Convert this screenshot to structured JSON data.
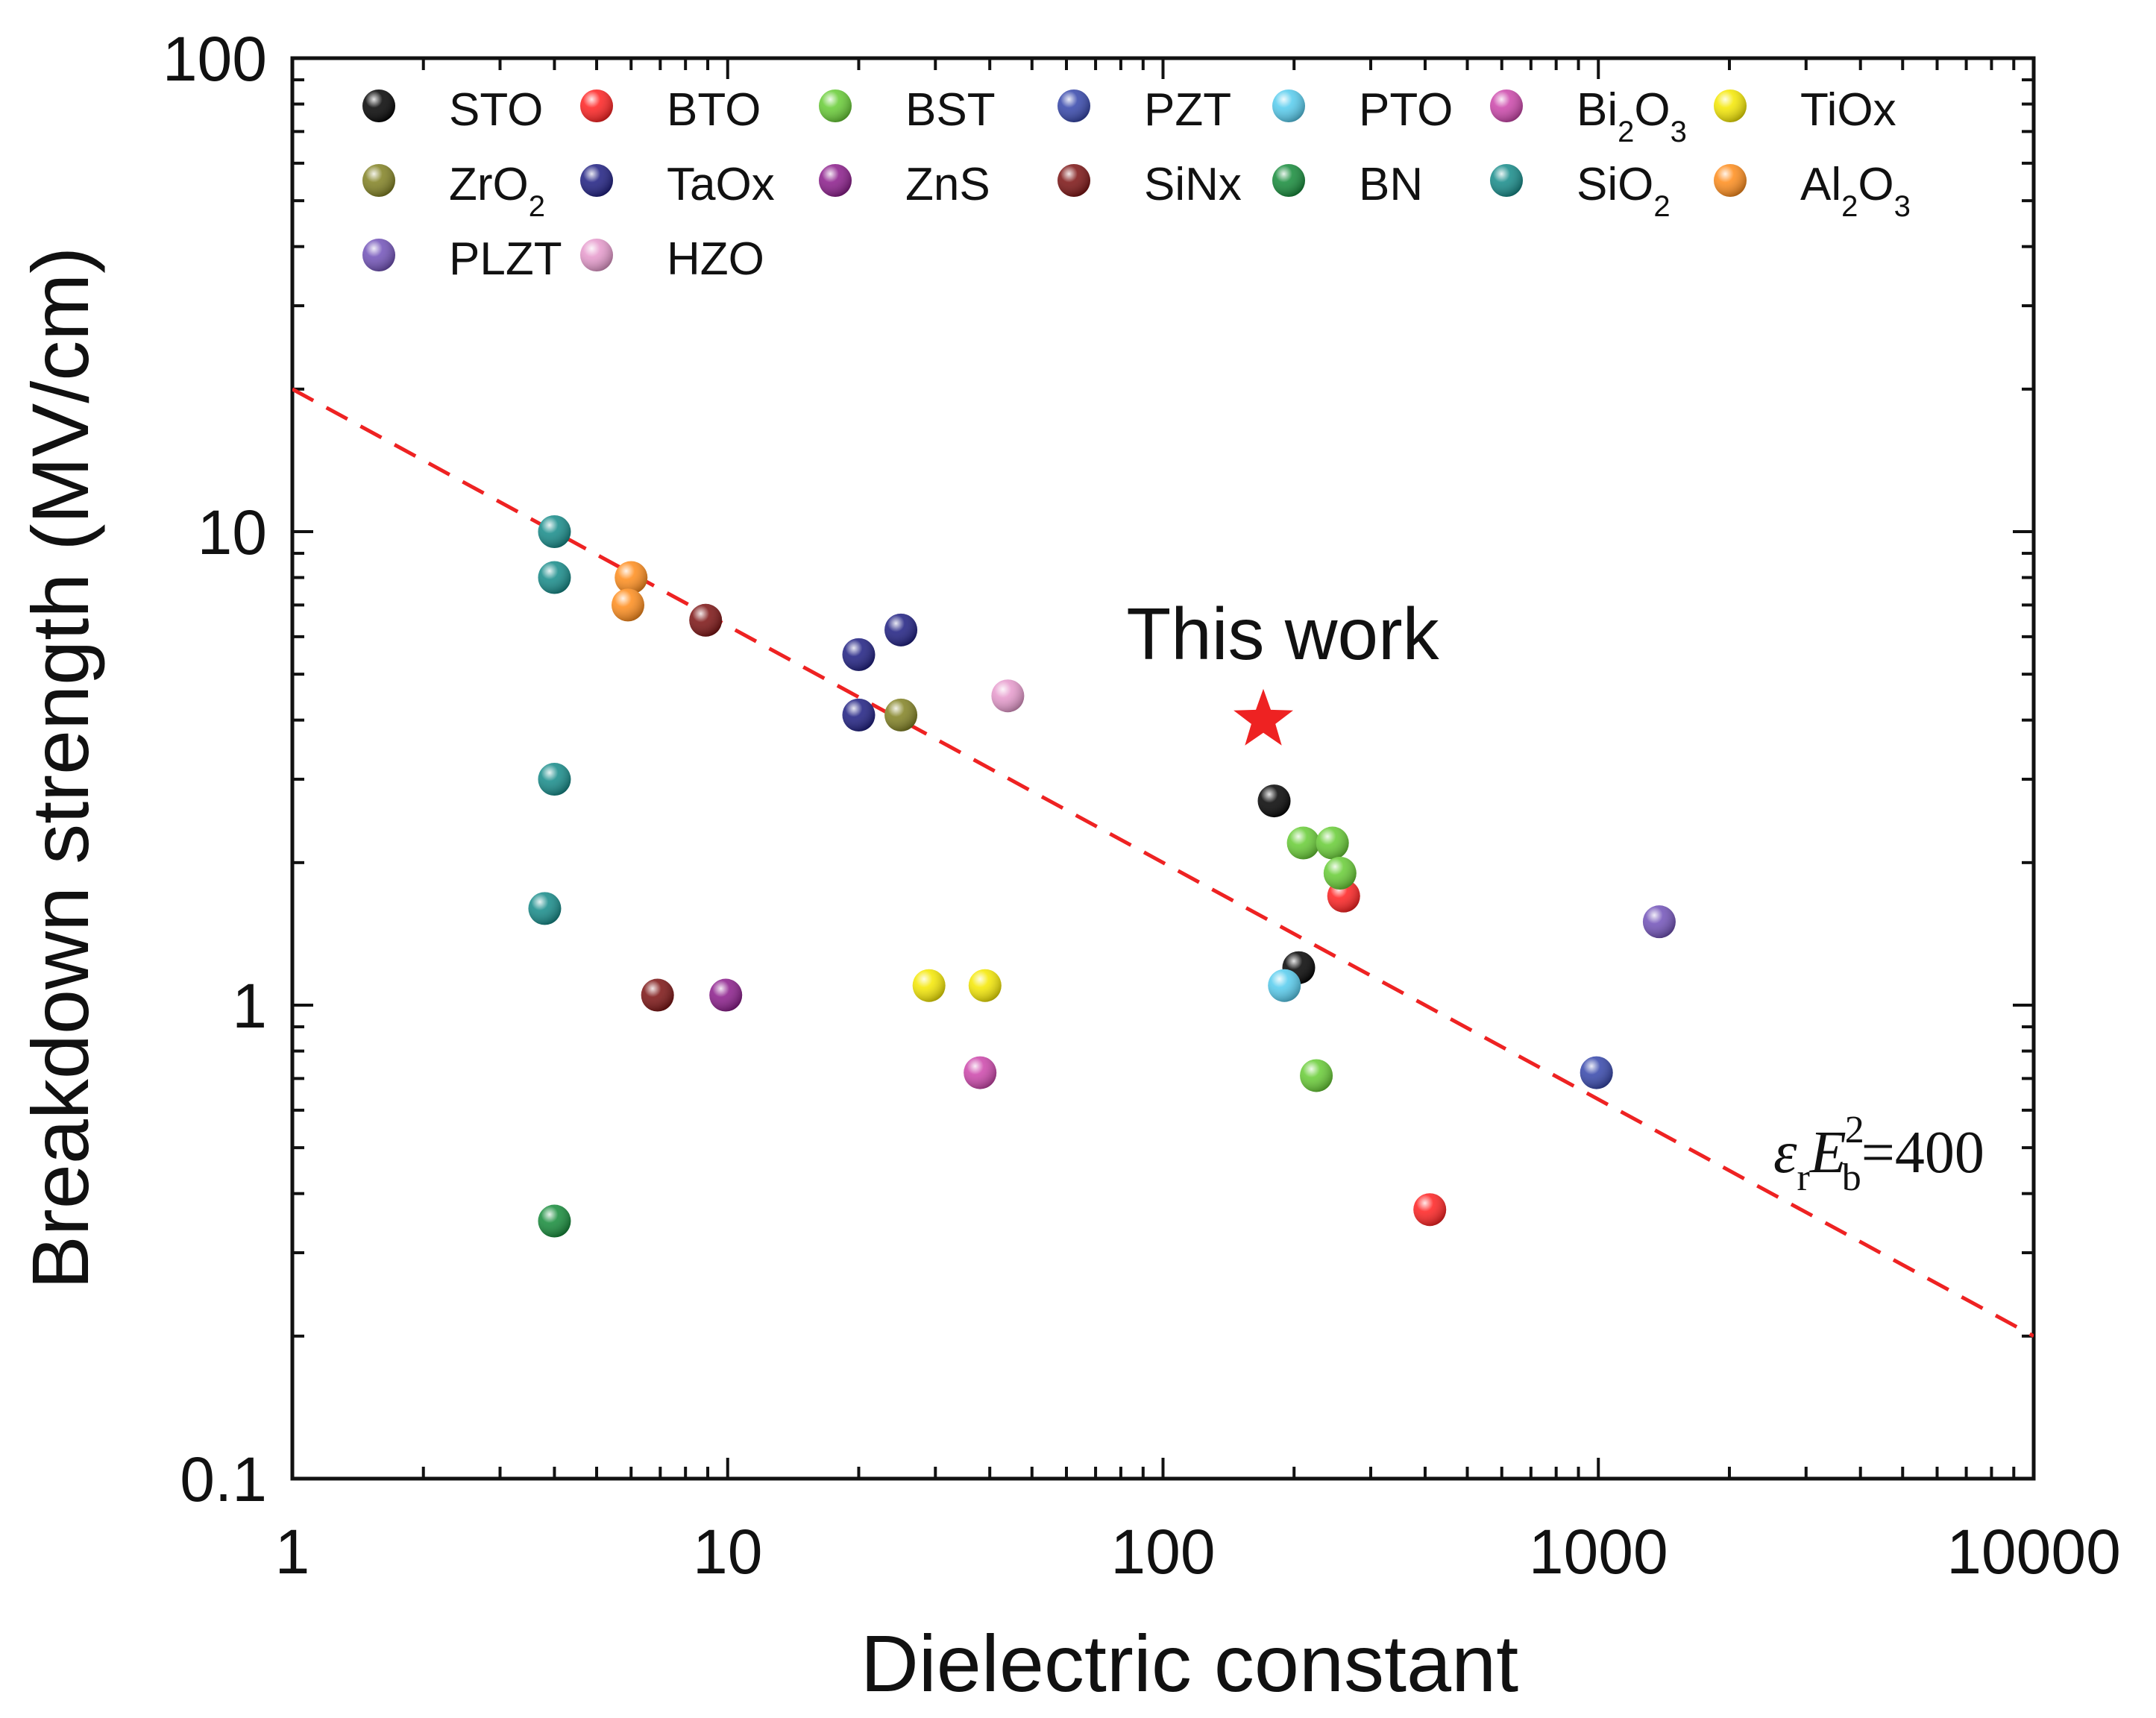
{
  "chart_data": {
    "type": "scatter",
    "xlabel": "Dielectric constant",
    "ylabel": "Breakdown strength (MV/cm)",
    "xscale": "log",
    "yscale": "log",
    "xlim": [
      1,
      10000
    ],
    "ylim": [
      0.1,
      100
    ],
    "x_ticks": [
      "1",
      "10",
      "100",
      "1000",
      "10000"
    ],
    "y_ticks": [
      "0.1",
      "1",
      "10",
      "100"
    ],
    "legend_position": "top",
    "series": [
      {
        "name": "STO",
        "color": "#000000",
        "points": [
          [
            180,
            2.7
          ],
          [
            205,
            1.2
          ]
        ]
      },
      {
        "name": "BTO",
        "color": "#ff1f1f",
        "points": [
          [
            260,
            1.7
          ],
          [
            410,
            0.37
          ]
        ]
      },
      {
        "name": "BST",
        "color": "#66cc33",
        "points": [
          [
            210,
            2.2
          ],
          [
            245,
            2.2
          ],
          [
            255,
            1.9
          ],
          [
            225,
            0.71
          ]
        ]
      },
      {
        "name": "PZT",
        "color": "#3344aa",
        "points": [
          [
            990,
            0.72
          ]
        ]
      },
      {
        "name": "PTO",
        "color": "#55ccee",
        "points": [
          [
            190,
            1.1
          ]
        ]
      },
      {
        "name": "Bi2O3",
        "color": "#cc44aa",
        "points": [
          [
            38,
            0.72
          ]
        ]
      },
      {
        "name": "TiOx",
        "color": "#f5e800",
        "points": [
          [
            29,
            1.1
          ],
          [
            39,
            1.1
          ]
        ]
      },
      {
        "name": "ZrO2",
        "color": "#808020",
        "points": [
          [
            25,
            4.1
          ]
        ]
      },
      {
        "name": "TaOx",
        "color": "#1c1c80",
        "points": [
          [
            20,
            5.5
          ],
          [
            25,
            6.2
          ],
          [
            20,
            4.1
          ]
        ]
      },
      {
        "name": "ZnS",
        "color": "#8a1a8a",
        "points": [
          [
            9.9,
            1.05
          ]
        ]
      },
      {
        "name": "SiNx",
        "color": "#7a1010",
        "points": [
          [
            8.9,
            6.5
          ],
          [
            6.9,
            1.05
          ]
        ]
      },
      {
        "name": "BN",
        "color": "#138a38",
        "points": [
          [
            4,
            0.35
          ]
        ]
      },
      {
        "name": "SiO2",
        "color": "#138a88",
        "points": [
          [
            4,
            10
          ],
          [
            4,
            8
          ],
          [
            4,
            3
          ],
          [
            3.8,
            1.6
          ]
        ]
      },
      {
        "name": "Al2O3",
        "color": "#ff8c1a",
        "points": [
          [
            6,
            8
          ],
          [
            5.9,
            7
          ]
        ]
      },
      {
        "name": "PLZT",
        "color": "#7050b8",
        "points": [
          [
            1380,
            1.5
          ]
        ]
      },
      {
        "name": "HZO",
        "color": "#e699cc",
        "points": [
          [
            44,
            4.5
          ]
        ]
      }
    ],
    "this_work": {
      "label": "This work",
      "x": 170,
      "y": 4.0,
      "marker": "star",
      "color": "#ee2222"
    },
    "reference_line": {
      "label_eps": "ε",
      "label_sub_r": "r",
      "label_E": "E",
      "label_sub_b": "b",
      "label_sup": "2",
      "label_value": "=400",
      "k": 400,
      "color": "#ee2222",
      "style": "dashed"
    }
  }
}
